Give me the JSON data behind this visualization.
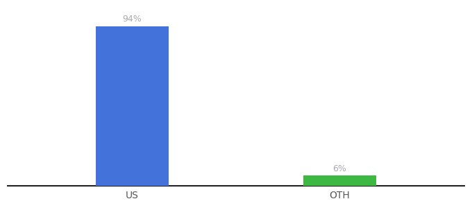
{
  "categories": [
    "US",
    "OTH"
  ],
  "values": [
    94,
    6
  ],
  "bar_colors": [
    "#4472DB",
    "#3CB843"
  ],
  "label_texts": [
    "94%",
    "6%"
  ],
  "background_color": "#ffffff",
  "ylim": [
    0,
    105
  ],
  "bar_width": 0.35,
  "figsize": [
    6.8,
    3.0
  ],
  "dpi": 100,
  "label_fontsize": 9,
  "tick_fontsize": 10,
  "tick_color": "#555555",
  "label_color": "#aaaaaa",
  "spine_color": "#222222",
  "x_positions": [
    0,
    1
  ],
  "xlim": [
    -0.6,
    1.6
  ]
}
